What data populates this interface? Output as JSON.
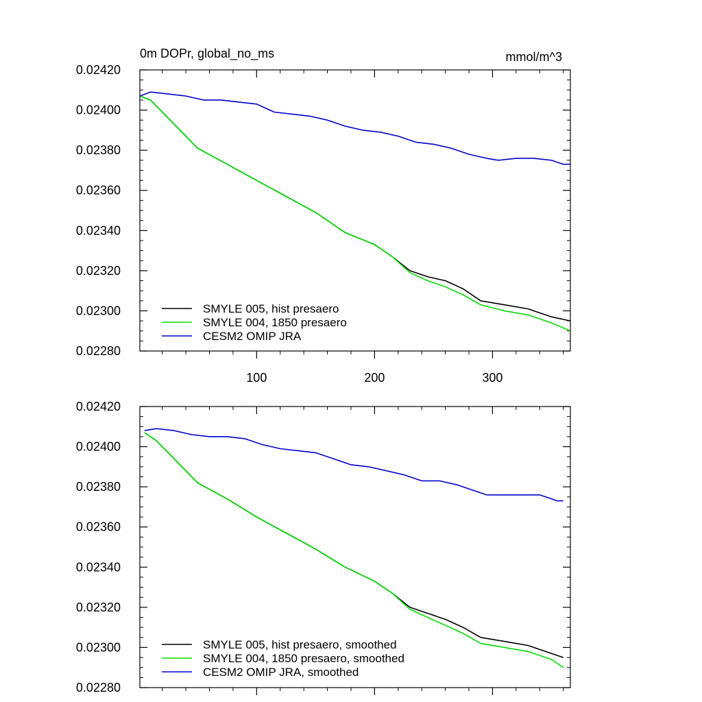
{
  "chart_data": [
    {
      "type": "line",
      "title": "0m DOPr, global_no_ms",
      "units": "mmol/m^3",
      "xlim": [
        1,
        366
      ],
      "ylim": [
        0.0228,
        0.0242
      ],
      "x_ticks": [
        100,
        200,
        300
      ],
      "x_tick_labels": [
        "100",
        "200",
        "300"
      ],
      "y_ticks": [
        0.0228,
        0.023,
        0.0232,
        0.0234,
        0.0236,
        0.0238,
        0.024,
        0.0242
      ],
      "y_tick_labels": [
        "0.02280",
        "0.02300",
        "0.02320",
        "0.02340",
        "0.02360",
        "0.02380",
        "0.02400",
        "0.02420"
      ],
      "grid": false,
      "legend_position": "bottom-left",
      "series": [
        {
          "name": "SMYLE 005, hist presaero",
          "color": "#000000",
          "x": [
            1,
            10,
            25,
            50,
            75,
            100,
            125,
            150,
            175,
            200,
            215,
            230,
            245,
            260,
            275,
            290,
            310,
            330,
            350,
            366
          ],
          "y": [
            0.02407,
            0.02405,
            0.02396,
            0.02381,
            0.02373,
            0.02365,
            0.02357,
            0.02349,
            0.02339,
            0.02333,
            0.02327,
            0.0232,
            0.02317,
            0.02315,
            0.02311,
            0.02305,
            0.02303,
            0.02301,
            0.02297,
            0.02295
          ]
        },
        {
          "name": "SMYLE 004, 1850 presaero",
          "color": "#00dd00",
          "x": [
            1,
            10,
            25,
            50,
            75,
            100,
            125,
            150,
            175,
            200,
            215,
            230,
            245,
            260,
            275,
            290,
            310,
            330,
            350,
            366
          ],
          "y": [
            0.02407,
            0.02405,
            0.02396,
            0.02381,
            0.02373,
            0.02365,
            0.02357,
            0.02349,
            0.02339,
            0.02333,
            0.02327,
            0.02319,
            0.02315,
            0.02312,
            0.02308,
            0.02303,
            0.023,
            0.02298,
            0.02294,
            0.0229
          ]
        },
        {
          "name": "CESM2 OMIP JRA",
          "color": "#0000cc",
          "x": [
            1,
            10,
            25,
            40,
            55,
            70,
            85,
            100,
            115,
            130,
            145,
            160,
            175,
            190,
            205,
            220,
            235,
            250,
            265,
            280,
            295,
            305,
            320,
            335,
            350,
            360,
            366
          ],
          "y": [
            0.02407,
            0.02409,
            0.02408,
            0.02407,
            0.02405,
            0.02405,
            0.02404,
            0.02403,
            0.02399,
            0.02398,
            0.02397,
            0.02395,
            0.02392,
            0.0239,
            0.02389,
            0.02387,
            0.02384,
            0.02383,
            0.02381,
            0.02378,
            0.02376,
            0.02375,
            0.02376,
            0.02376,
            0.02375,
            0.02373,
            0.02373
          ]
        }
      ]
    },
    {
      "type": "line",
      "xlim": [
        1,
        366
      ],
      "ylim": [
        0.0228,
        0.0242
      ],
      "x_ticks": [
        100,
        200,
        300
      ],
      "y_ticks": [
        0.0228,
        0.023,
        0.0232,
        0.0234,
        0.0236,
        0.0238,
        0.024,
        0.0242
      ],
      "y_tick_labels": [
        "0.02280",
        "0.02300",
        "0.02320",
        "0.02340",
        "0.02360",
        "0.02380",
        "0.02400",
        "0.02420"
      ],
      "grid": false,
      "legend_position": "bottom-left",
      "series": [
        {
          "name": "SMYLE 005, hist presaero, smoothed",
          "color": "#000000",
          "x": [
            5,
            15,
            30,
            50,
            75,
            100,
            125,
            150,
            175,
            200,
            215,
            230,
            245,
            260,
            275,
            290,
            310,
            330,
            350,
            360
          ],
          "y": [
            0.02407,
            0.02403,
            0.02394,
            0.02382,
            0.02374,
            0.02365,
            0.02357,
            0.02349,
            0.0234,
            0.02333,
            0.02327,
            0.0232,
            0.02317,
            0.02314,
            0.0231,
            0.02305,
            0.02303,
            0.02301,
            0.02297,
            0.02295
          ]
        },
        {
          "name": "SMYLE 004, 1850 presaero, smoothed",
          "color": "#00dd00",
          "x": [
            5,
            15,
            30,
            50,
            75,
            100,
            125,
            150,
            175,
            200,
            215,
            230,
            245,
            260,
            275,
            290,
            310,
            330,
            350,
            360
          ],
          "y": [
            0.02407,
            0.02403,
            0.02394,
            0.02382,
            0.02374,
            0.02365,
            0.02357,
            0.02349,
            0.0234,
            0.02333,
            0.02327,
            0.02319,
            0.02315,
            0.02311,
            0.02307,
            0.02302,
            0.023,
            0.02298,
            0.02294,
            0.0229
          ]
        },
        {
          "name": "CESM2 OMIP JRA, smoothed",
          "color": "#0000cc",
          "x": [
            5,
            15,
            30,
            45,
            60,
            75,
            90,
            105,
            120,
            135,
            150,
            165,
            180,
            195,
            210,
            225,
            240,
            255,
            270,
            285,
            295,
            310,
            325,
            340,
            355,
            360
          ],
          "y": [
            0.02408,
            0.02409,
            0.02408,
            0.02406,
            0.02405,
            0.02405,
            0.02404,
            0.02401,
            0.02399,
            0.02398,
            0.02397,
            0.02394,
            0.02391,
            0.0239,
            0.02388,
            0.02386,
            0.02383,
            0.02383,
            0.02381,
            0.02378,
            0.02376,
            0.02376,
            0.02376,
            0.02376,
            0.02373,
            0.02373
          ]
        }
      ]
    }
  ]
}
